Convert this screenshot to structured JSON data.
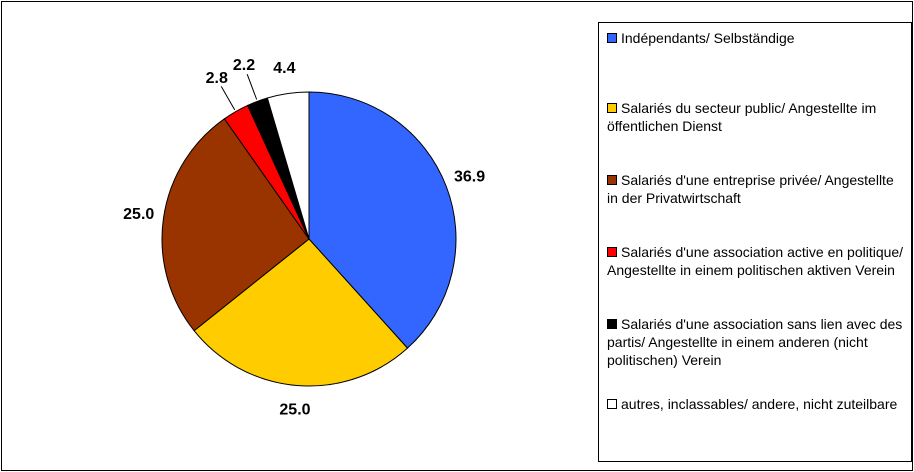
{
  "chart_data": {
    "type": "pie",
    "categories": [
      "Indépendants/ Selbständige",
      "Salariés du secteur public/ Angestellte im öffentlichen Dienst",
      "Salariés d'une entreprise privée/ Angestellte in der Privatwirtschaft",
      "Salariés d'une association active en politique/ Angestellte in einem politischen aktiven Verein",
      "Salariés d'une association sans lien avec des partis/ Angestellte in einem anderen (nicht politischen) Verein",
      "autres, inclassables/ andere, nicht zuteilbare"
    ],
    "values": [
      36.9,
      25.0,
      25.0,
      2.8,
      2.2,
      4.4
    ],
    "value_labels": [
      "36.9",
      "25.0",
      "25.0",
      "2.8",
      "2.2",
      "4.4"
    ],
    "colors": [
      "#3366ff",
      "#ffcc00",
      "#993300",
      "#ff0000",
      "#000000",
      "#ffffff"
    ],
    "legend": "right"
  }
}
